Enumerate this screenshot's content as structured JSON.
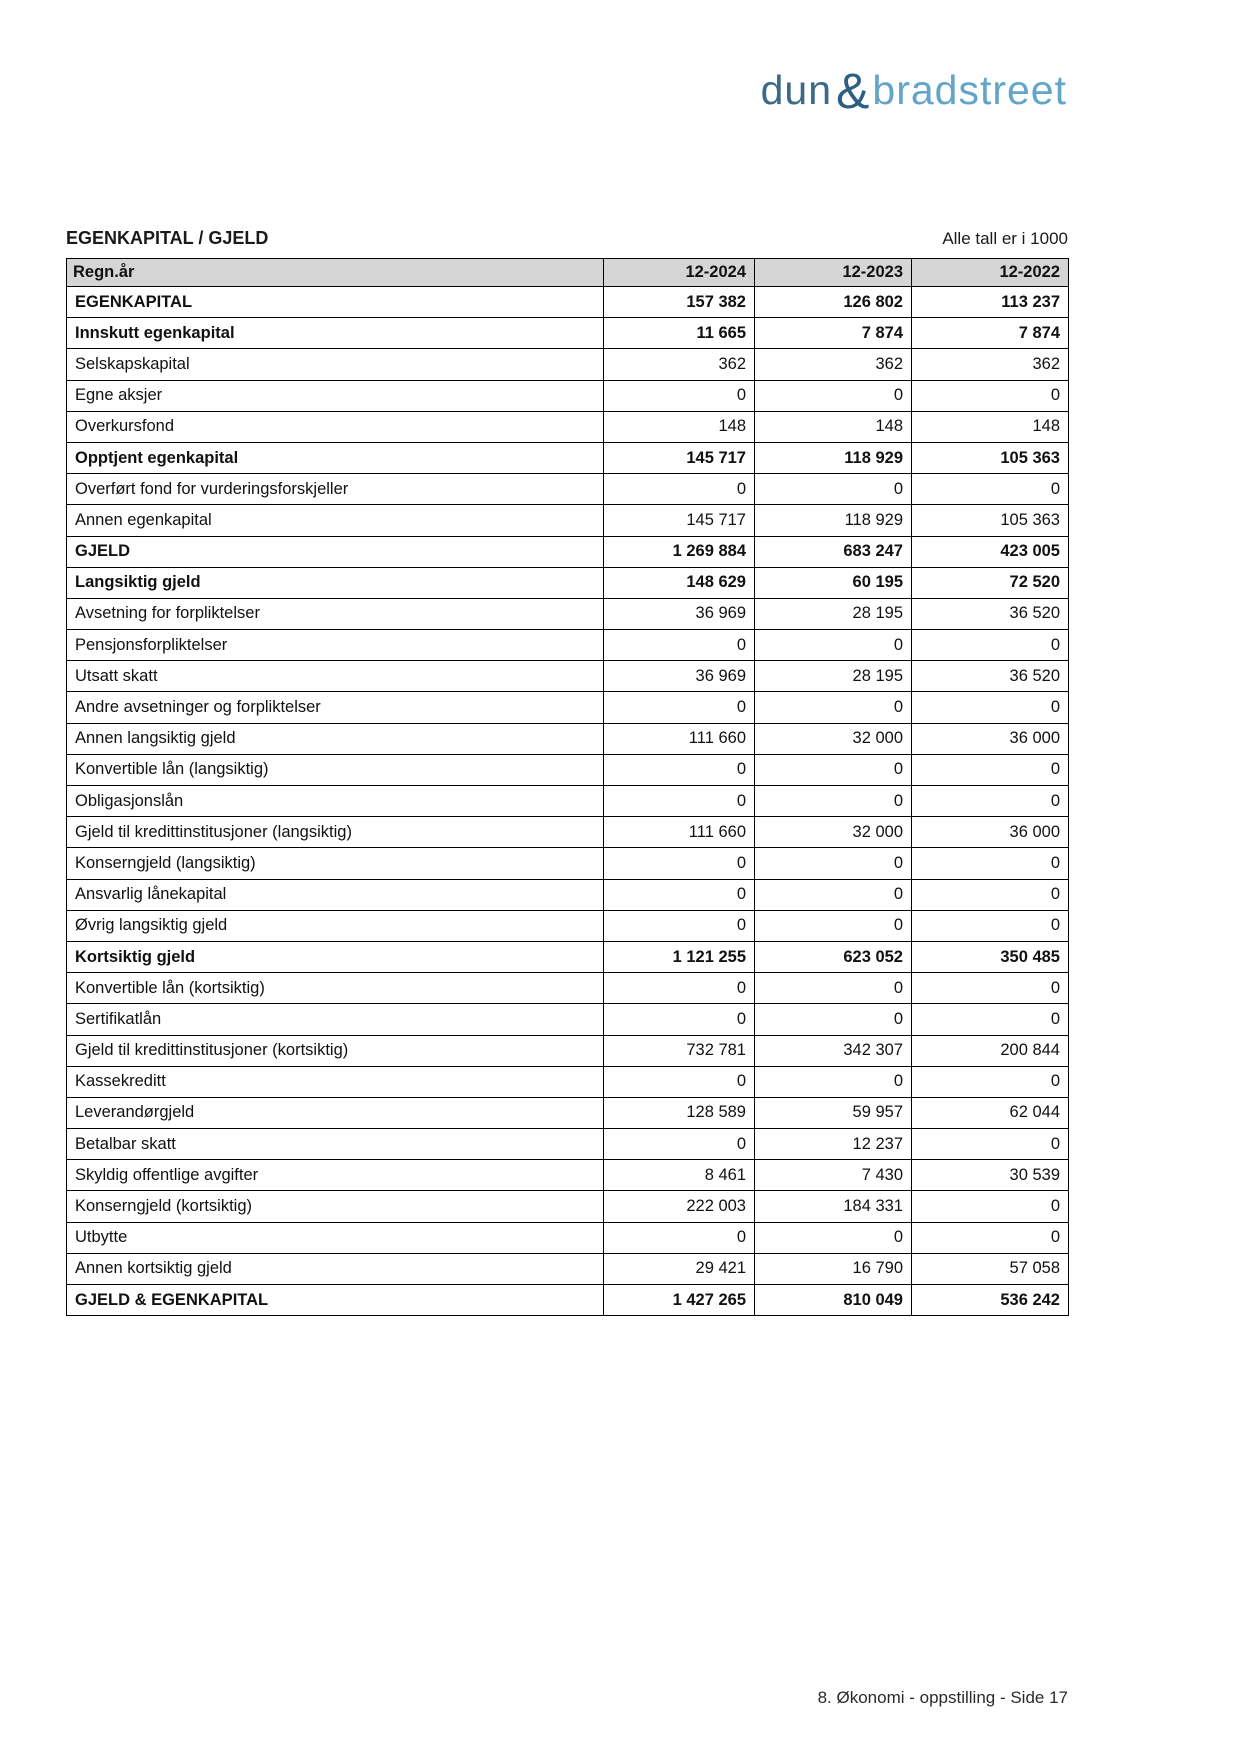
{
  "logo": {
    "part1": "dun",
    "ampersand": "&",
    "part2": "bradstreet"
  },
  "header": {
    "title": "EGENKAPITAL / GJELD",
    "units_note": "Alle tall er i 1000"
  },
  "table": {
    "columns": [
      "Regn.år",
      "12-2024",
      "12-2023",
      "12-2022"
    ],
    "rows": [
      {
        "label": "EGENKAPITAL",
        "bold": true,
        "values": [
          "157 382",
          "126 802",
          "113 237"
        ]
      },
      {
        "label": "Innskutt egenkapital",
        "bold": true,
        "values": [
          "11 665",
          "7 874",
          "7 874"
        ]
      },
      {
        "label": "Selskapskapital",
        "bold": false,
        "values": [
          "362",
          "362",
          "362"
        ]
      },
      {
        "label": "Egne aksjer",
        "bold": false,
        "values": [
          "0",
          "0",
          "0"
        ]
      },
      {
        "label": "Overkursfond",
        "bold": false,
        "values": [
          "148",
          "148",
          "148"
        ]
      },
      {
        "label": "Opptjent egenkapital",
        "bold": true,
        "values": [
          "145 717",
          "118 929",
          "105 363"
        ]
      },
      {
        "label": "Overført fond for vurderingsforskjeller",
        "bold": false,
        "values": [
          "0",
          "0",
          "0"
        ]
      },
      {
        "label": "Annen egenkapital",
        "bold": false,
        "values": [
          "145 717",
          "118 929",
          "105 363"
        ]
      },
      {
        "label": "GJELD",
        "bold": true,
        "values": [
          "1 269 884",
          "683 247",
          "423 005"
        ]
      },
      {
        "label": "Langsiktig gjeld",
        "bold": true,
        "values": [
          "148 629",
          "60 195",
          "72 520"
        ]
      },
      {
        "label": "Avsetning for forpliktelser",
        "bold": false,
        "values": [
          "36 969",
          "28 195",
          "36 520"
        ]
      },
      {
        "label": "Pensjonsforpliktelser",
        "bold": false,
        "values": [
          "0",
          "0",
          "0"
        ]
      },
      {
        "label": "Utsatt skatt",
        "bold": false,
        "values": [
          "36 969",
          "28 195",
          "36 520"
        ]
      },
      {
        "label": "Andre avsetninger og forpliktelser",
        "bold": false,
        "values": [
          "0",
          "0",
          "0"
        ]
      },
      {
        "label": "Annen langsiktig gjeld",
        "bold": false,
        "values": [
          "111 660",
          "32 000",
          "36 000"
        ]
      },
      {
        "label": "Konvertible lån (langsiktig)",
        "bold": false,
        "values": [
          "0",
          "0",
          "0"
        ]
      },
      {
        "label": "Obligasjonslån",
        "bold": false,
        "values": [
          "0",
          "0",
          "0"
        ]
      },
      {
        "label": "Gjeld til kredittinstitusjoner (langsiktig)",
        "bold": false,
        "values": [
          "111 660",
          "32 000",
          "36 000"
        ]
      },
      {
        "label": "Konserngjeld (langsiktig)",
        "bold": false,
        "values": [
          "0",
          "0",
          "0"
        ]
      },
      {
        "label": "Ansvarlig lånekapital",
        "bold": false,
        "values": [
          "0",
          "0",
          "0"
        ]
      },
      {
        "label": "Øvrig langsiktig gjeld",
        "bold": false,
        "values": [
          "0",
          "0",
          "0"
        ]
      },
      {
        "label": "Kortsiktig gjeld",
        "bold": true,
        "values": [
          "1 121 255",
          "623 052",
          "350 485"
        ]
      },
      {
        "label": "Konvertible lån (kortsiktig)",
        "bold": false,
        "values": [
          "0",
          "0",
          "0"
        ]
      },
      {
        "label": "Sertifikatlån",
        "bold": false,
        "values": [
          "0",
          "0",
          "0"
        ]
      },
      {
        "label": "Gjeld til kredittinstitusjoner (kortsiktig)",
        "bold": false,
        "values": [
          "732 781",
          "342 307",
          "200 844"
        ]
      },
      {
        "label": "Kassekreditt",
        "bold": false,
        "values": [
          "0",
          "0",
          "0"
        ]
      },
      {
        "label": "Leverandørgjeld",
        "bold": false,
        "values": [
          "128 589",
          "59 957",
          "62 044"
        ]
      },
      {
        "label": "Betalbar skatt",
        "bold": false,
        "values": [
          "0",
          "12 237",
          "0"
        ]
      },
      {
        "label": "Skyldig offentlige avgifter",
        "bold": false,
        "values": [
          "8 461",
          "7 430",
          "30 539"
        ]
      },
      {
        "label": "Konserngjeld (kortsiktig)",
        "bold": false,
        "values": [
          "222 003",
          "184 331",
          "0"
        ]
      },
      {
        "label": "Utbytte",
        "bold": false,
        "values": [
          "0",
          "0",
          "0"
        ]
      },
      {
        "label": "Annen kortsiktig gjeld",
        "bold": false,
        "values": [
          "29 421",
          "16 790",
          "57 058"
        ]
      },
      {
        "label": "GJELD & EGENKAPITAL",
        "bold": true,
        "values": [
          "1 427 265",
          "810 049",
          "536 242"
        ]
      }
    ]
  },
  "footer": {
    "text": "8. Økonomi - oppstilling - Side 17"
  },
  "colors": {
    "logo_dark_blue": "#3a6a89",
    "logo_ampersand_blue": "#2c5f80",
    "logo_light_blue": "#62a5c9",
    "table_header_bg": "#d5d5d5",
    "table_border": "#000000",
    "text": "#111111"
  }
}
